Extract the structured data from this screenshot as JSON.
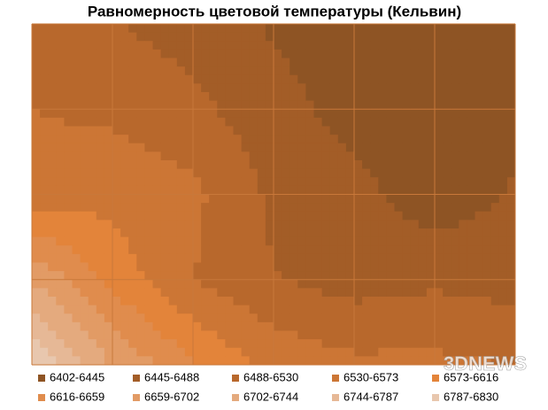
{
  "chart_data": {
    "type": "contour",
    "title": "Равномерность цветовой температуры (Кельвин)",
    "z": [
      [
        6500,
        6490,
        6470,
        6440,
        6420,
        6430,
        6420
      ],
      [
        6530,
        6520,
        6500,
        6460,
        6430,
        6410,
        6430
      ],
      [
        6550,
        6560,
        6540,
        6480,
        6460,
        6420,
        6450
      ],
      [
        6700,
        6600,
        6530,
        6490,
        6470,
        6480,
        6470
      ],
      [
        6830,
        6700,
        6620,
        6560,
        6540,
        6540,
        6530
      ]
    ],
    "level_bounds": [
      6402,
      6445,
      6488,
      6530,
      6573,
      6616,
      6659,
      6702,
      6744,
      6787,
      6830
    ],
    "levels": [
      {
        "label": "6402-6445",
        "color": "#8e5424"
      },
      {
        "label": "6445-6488",
        "color": "#a35d27"
      },
      {
        "label": "6488-6530",
        "color": "#b8682c"
      },
      {
        "label": "6530-6573",
        "color": "#cc7635"
      },
      {
        "label": "6573-6616",
        "color": "#e3843a"
      },
      {
        "label": "6616-6659",
        "color": "#e08c4d"
      },
      {
        "label": "6659-6702",
        "color": "#e29b65"
      },
      {
        "label": "6702-6744",
        "color": "#e4aa7e"
      },
      {
        "label": "6744-6787",
        "color": "#e6b896"
      },
      {
        "label": "6787-6830",
        "color": "#e8c7ae"
      }
    ],
    "grid": true,
    "watermark": "3DNEWS"
  }
}
